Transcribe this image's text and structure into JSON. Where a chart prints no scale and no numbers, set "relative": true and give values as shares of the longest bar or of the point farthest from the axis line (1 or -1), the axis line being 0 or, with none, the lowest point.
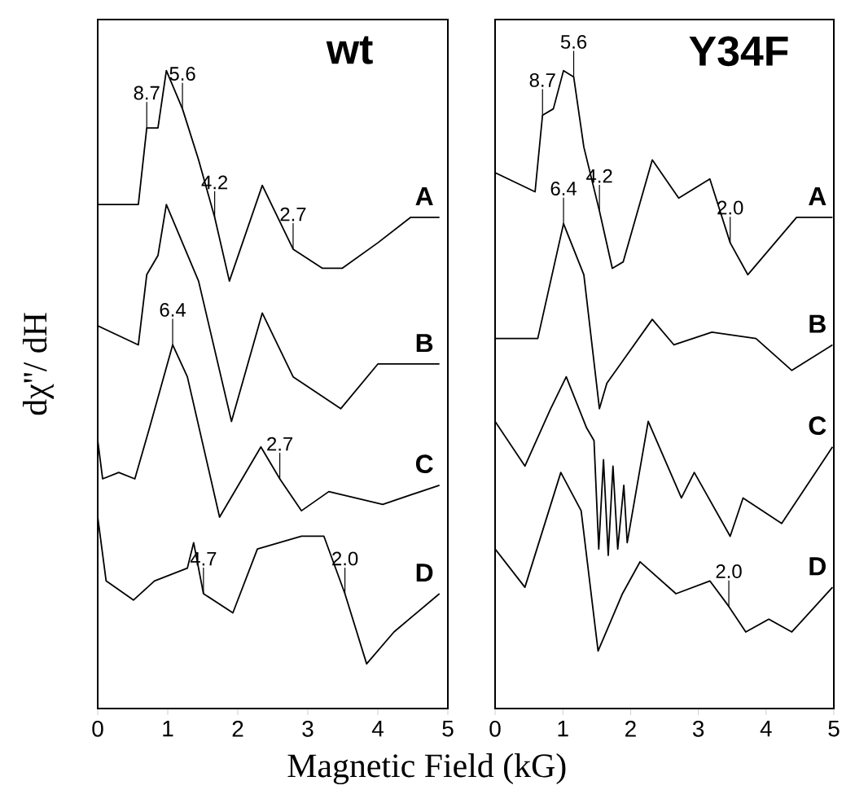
{
  "chart_data": [
    {
      "type": "line",
      "title": "wt",
      "xlabel": "Magnetic Field (kG)",
      "ylabel": "dχ''/ dH",
      "relative": true,
      "tick_labels": "x",
      "xlim": [
        0,
        5
      ],
      "xticks": [
        0,
        1,
        2,
        3,
        4,
        5
      ],
      "series": [
        {
          "name": "A",
          "color": "#000000",
          "x": [
            0,
            0.58,
            0.7,
            0.86,
            0.98,
            1.21,
            1.44,
            1.67,
            1.88,
            2.35,
            2.79,
            3.21,
            3.49,
            4.0,
            4.47,
            4.88
          ],
          "values": [
            0.79,
            0.79,
            0.91,
            0.91,
            1.0,
            0.94,
            0.86,
            0.77,
            0.67,
            0.82,
            0.72,
            0.69,
            0.69,
            0.73,
            0.77,
            0.77
          ]
        },
        {
          "name": "B",
          "color": "#000000",
          "x": [
            0,
            0.58,
            0.7,
            0.86,
            0.98,
            1.21,
            1.44,
            1.91,
            2.35,
            2.79,
            3.47,
            4.0,
            4.88
          ],
          "values": [
            0.6,
            0.57,
            0.68,
            0.71,
            0.79,
            0.73,
            0.67,
            0.45,
            0.62,
            0.52,
            0.47,
            0.54,
            0.54
          ]
        },
        {
          "name": "C",
          "color": "#000000",
          "x": [
            0,
            0.07,
            0.3,
            0.53,
            0.74,
            1.07,
            1.28,
            1.74,
            2.33,
            2.6,
            2.91,
            3.3,
            4.07,
            4.88
          ],
          "values": [
            0.42,
            0.36,
            0.37,
            0.36,
            0.44,
            0.57,
            0.52,
            0.3,
            0.41,
            0.36,
            0.31,
            0.34,
            0.32,
            0.35
          ]
        },
        {
          "name": "D",
          "color": "#000000",
          "x": [
            0,
            0.12,
            0.51,
            0.81,
            1.28,
            1.37,
            1.51,
            1.93,
            2.28,
            2.91,
            3.23,
            3.53,
            3.84,
            4.23,
            4.88
          ],
          "values": [
            0.3,
            0.2,
            0.17,
            0.2,
            0.22,
            0.26,
            0.18,
            0.15,
            0.25,
            0.27,
            0.27,
            0.18,
            0.07,
            0.12,
            0.18
          ]
        }
      ],
      "annotations": [
        {
          "text": "8.7",
          "x": 0.7,
          "y": 0.91
        },
        {
          "text": "5.6",
          "x": 1.21,
          "y": 0.94
        },
        {
          "text": "4.2",
          "x": 1.67,
          "y": 0.77
        },
        {
          "text": "2.7",
          "x": 2.79,
          "y": 0.72
        },
        {
          "text": "6.4",
          "x": 1.07,
          "y": 0.57
        },
        {
          "text": "2.7",
          "x": 2.6,
          "y": 0.36
        },
        {
          "text": "4.7",
          "x": 1.51,
          "y": 0.18
        },
        {
          "text": "2.0",
          "x": 3.53,
          "y": 0.18
        }
      ]
    },
    {
      "type": "line",
      "title": "Y34F",
      "relative": true,
      "tick_labels": "x",
      "xlim": [
        0,
        5
      ],
      "xticks": [
        0,
        1,
        2,
        3,
        4,
        5
      ],
      "series": [
        {
          "name": "A",
          "color": "#000000",
          "x": [
            0,
            0.59,
            0.7,
            0.86,
            1.01,
            1.16,
            1.31,
            1.54,
            1.73,
            1.89,
            2.32,
            2.71,
            3.17,
            3.47,
            3.73,
            4.45,
            4.98
          ],
          "values": [
            0.84,
            0.81,
            0.93,
            0.94,
            1.0,
            0.99,
            0.88,
            0.78,
            0.69,
            0.7,
            0.86,
            0.8,
            0.83,
            0.73,
            0.68,
            0.77,
            0.77
          ]
        },
        {
          "name": "B",
          "color": "#000000",
          "x": [
            0,
            0.63,
            1.01,
            1.31,
            1.54,
            1.65,
            2.32,
            2.64,
            3.2,
            3.85,
            4.38,
            4.98
          ],
          "values": [
            0.58,
            0.58,
            0.76,
            0.68,
            0.47,
            0.51,
            0.61,
            0.57,
            0.59,
            0.58,
            0.53,
            0.57
          ]
        },
        {
          "name": "C",
          "color": "#000000",
          "x": [
            0,
            0.44,
            0.82,
            1.05,
            1.35,
            1.46,
            1.53,
            1.6,
            1.67,
            1.74,
            1.81,
            1.9,
            1.95,
            2.26,
            2.75,
            2.94,
            3.47,
            3.66,
            4.23,
            4.98
          ],
          "values": [
            0.45,
            0.38,
            0.47,
            0.52,
            0.44,
            0.42,
            0.25,
            0.39,
            0.24,
            0.38,
            0.25,
            0.35,
            0.26,
            0.45,
            0.33,
            0.37,
            0.27,
            0.33,
            0.29,
            0.41
          ]
        },
        {
          "name": "D",
          "color": "#000000",
          "x": [
            0,
            0.44,
            0.97,
            1.27,
            1.52,
            1.88,
            2.14,
            2.67,
            3.17,
            3.45,
            3.7,
            4.04,
            4.38,
            4.98
          ],
          "values": [
            0.25,
            0.19,
            0.37,
            0.31,
            0.09,
            0.18,
            0.23,
            0.18,
            0.2,
            0.16,
            0.12,
            0.14,
            0.12,
            0.19
          ]
        }
      ],
      "annotations": [
        {
          "text": "8.7",
          "x": 0.7,
          "y": 0.93
        },
        {
          "text": "5.6",
          "x": 1.16,
          "y": 0.99
        },
        {
          "text": "4.2",
          "x": 1.54,
          "y": 0.78
        },
        {
          "text": "2.0",
          "x": 3.47,
          "y": 0.73
        },
        {
          "text": "6.4",
          "x": 1.01,
          "y": 0.76
        },
        {
          "text": "2.0",
          "x": 3.45,
          "y": 0.16
        }
      ]
    }
  ]
}
